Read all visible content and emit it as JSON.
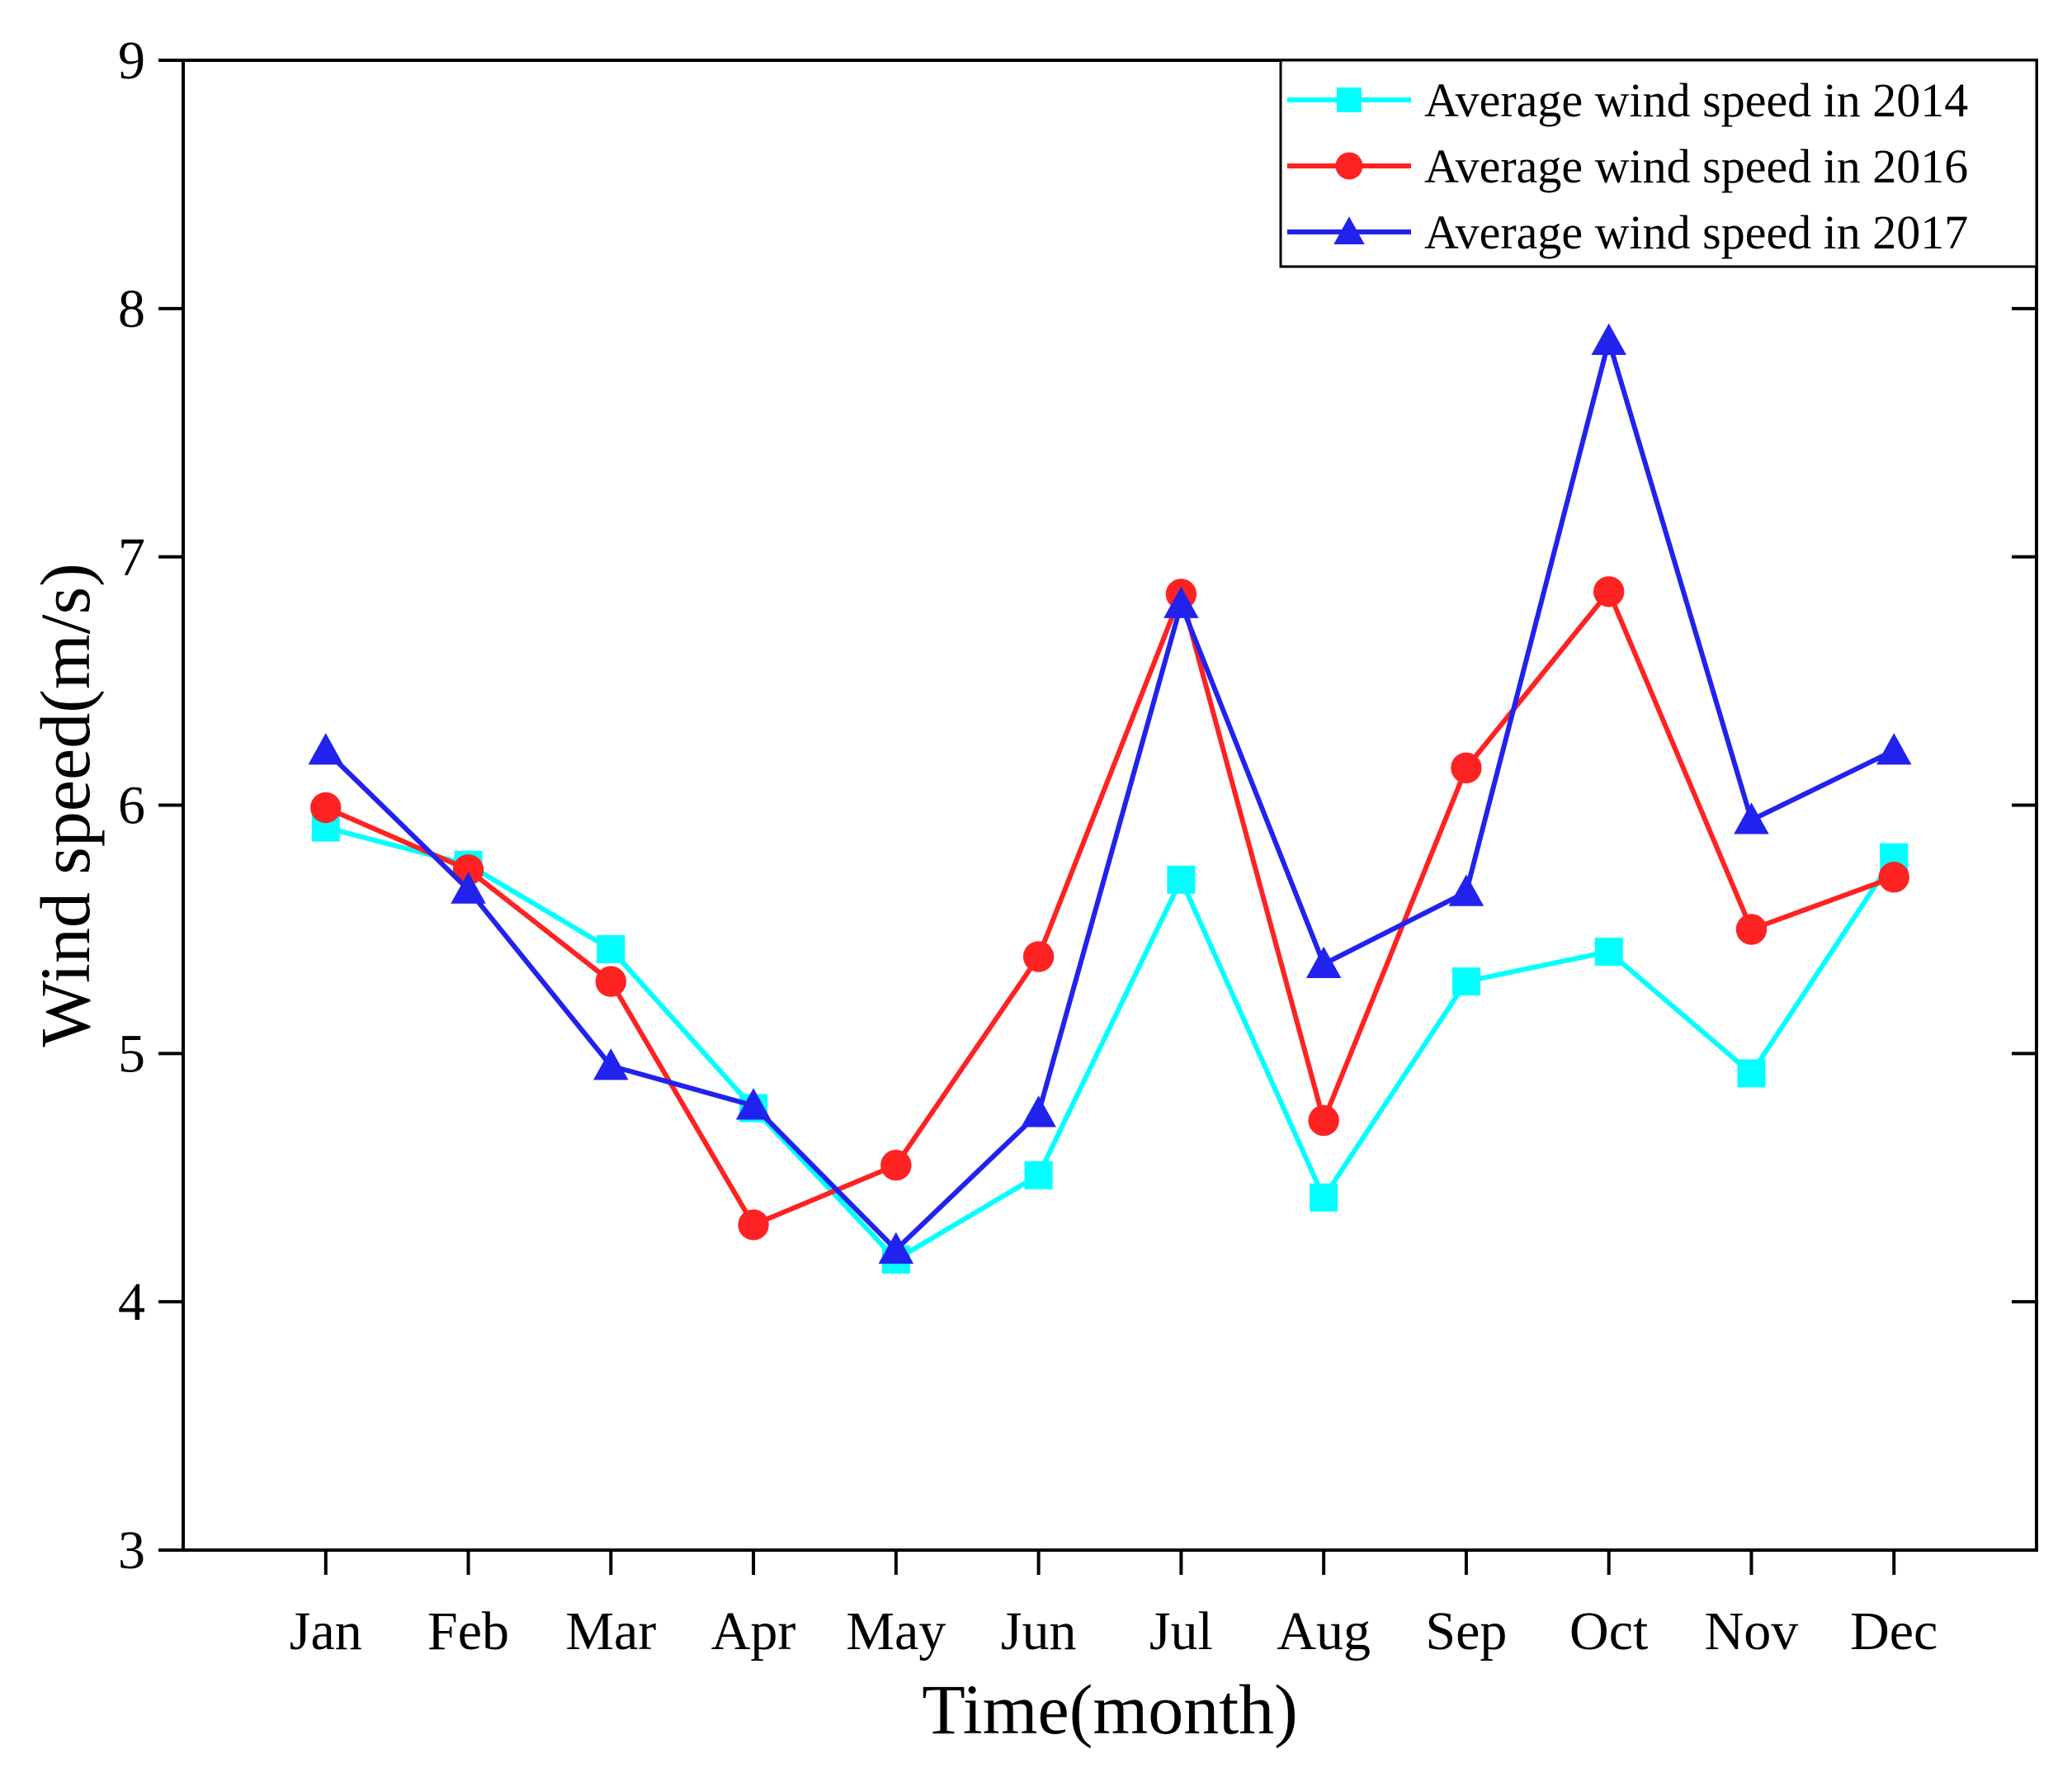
{
  "chart_data": {
    "type": "line",
    "xlabel": "Time(month)",
    "ylabel": "Wind speed(m/s)",
    "ylim": [
      3,
      9
    ],
    "yticks": [
      "3",
      "4",
      "5",
      "6",
      "7",
      "8",
      "9"
    ],
    "categories": [
      "Jan",
      "Feb",
      "Mar",
      "Apr",
      "May",
      "Jun",
      "Jul",
      "Aug",
      "Sep",
      "Oct",
      "Nov",
      "Dec"
    ],
    "grid": false,
    "legend_position": "top-right",
    "series": [
      {
        "name": "Average wind speed in 2014",
        "color": "#00ffff",
        "marker": "square",
        "values": [
          5.91,
          5.76,
          5.42,
          4.78,
          4.17,
          4.51,
          5.7,
          4.42,
          5.29,
          5.41,
          4.92,
          5.79
        ]
      },
      {
        "name": "Average wind speed in 2016",
        "color": "#ff2222",
        "marker": "circle",
        "values": [
          5.99,
          5.74,
          5.29,
          4.31,
          4.55,
          5.39,
          6.85,
          4.73,
          6.15,
          6.86,
          5.5,
          5.71
        ]
      },
      {
        "name": "Average wind speed in 2017",
        "color": "#2222ee",
        "marker": "triangle",
        "values": [
          6.22,
          5.66,
          4.95,
          4.79,
          4.21,
          4.76,
          6.81,
          5.36,
          5.65,
          7.87,
          5.94,
          6.22
        ]
      }
    ]
  }
}
